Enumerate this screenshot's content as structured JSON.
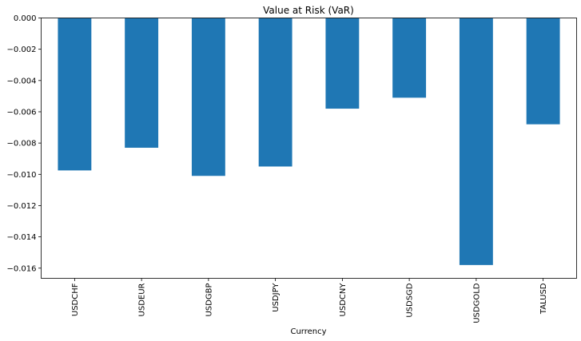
{
  "chart_data": {
    "type": "bar",
    "title": "Value at Risk (VaR)",
    "xlabel": "Currency",
    "ylabel": "",
    "categories": [
      "USDCHF",
      "USDEUR",
      "USDGBP",
      "USDJPY",
      "USDCNY",
      "USDSGD",
      "USDGOLD",
      "TALUSD"
    ],
    "values": [
      -0.00975,
      -0.0083,
      -0.0101,
      -0.0095,
      -0.0058,
      -0.0051,
      -0.0158,
      -0.0068
    ],
    "ylim": [
      -0.01665,
      0.0
    ],
    "yticks": [
      0.0,
      -0.002,
      -0.004,
      -0.006,
      -0.008,
      -0.01,
      -0.012,
      -0.014,
      -0.016
    ],
    "ytick_labels": [
      "0.000",
      "−0.002",
      "−0.004",
      "−0.006",
      "−0.008",
      "−0.010",
      "−0.012",
      "−0.014",
      "−0.016"
    ],
    "bar_color": "#1f77b4",
    "grid": false,
    "legend": "none"
  }
}
